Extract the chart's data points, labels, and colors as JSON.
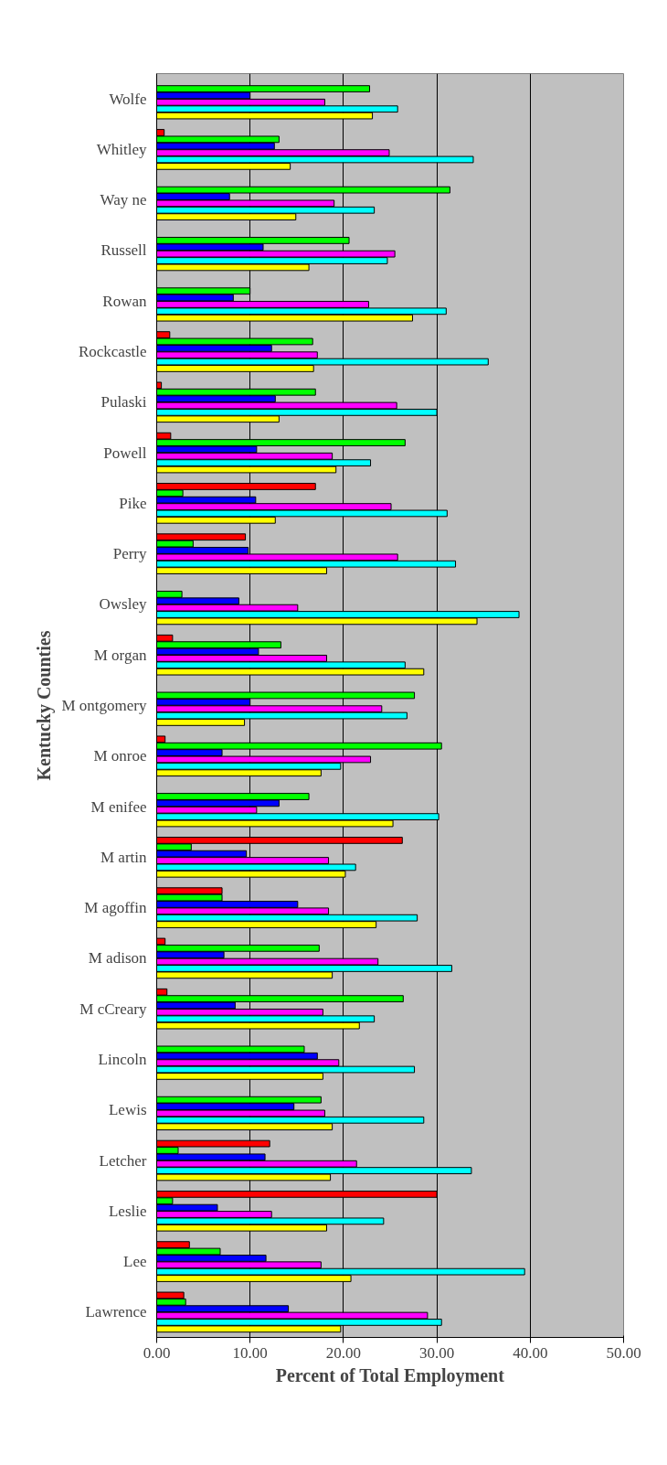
{
  "chart_data": {
    "type": "bar",
    "orientation": "horizontal",
    "xlabel": "Percent of Total Employment",
    "ylabel": "Kentucky Counties",
    "categories": [
      "Wolfe",
      "Whitley",
      "Way ne",
      "Russell",
      "Rowan",
      "Rockcastle",
      "Pulaski",
      "Powell",
      "Pike",
      "Perry",
      "Owsley",
      "M organ",
      "M ontgomery",
      "M onroe",
      "M enifee",
      "M artin",
      "M agoffin",
      "M adison",
      "M cCreary",
      "Lincoln",
      "Lewis",
      "Letcher",
      "Leslie",
      "Lee",
      "Lawrence"
    ],
    "series": [
      {
        "color": "#ff0000",
        "values": [
          null,
          0.8,
          null,
          null,
          null,
          1.4,
          0.5,
          1.5,
          17.0,
          9.5,
          null,
          1.7,
          null,
          0.9,
          null,
          26.3,
          7.0,
          0.9,
          1.1,
          null,
          null,
          12.1,
          30.0,
          3.5,
          2.9
        ]
      },
      {
        "color": "#00ff00",
        "values": [
          22.8,
          13.1,
          31.4,
          20.6,
          10.0,
          16.7,
          17.0,
          26.6,
          2.8,
          3.9,
          2.7,
          13.3,
          27.6,
          30.5,
          16.3,
          3.7,
          7.0,
          17.4,
          26.4,
          15.8,
          17.6,
          2.3,
          1.7,
          6.8,
          3.1
        ]
      },
      {
        "color": "#0000ff",
        "values": [
          10.0,
          12.6,
          7.8,
          11.4,
          8.2,
          12.3,
          12.7,
          10.7,
          10.6,
          9.8,
          8.8,
          10.9,
          10.0,
          7.0,
          13.1,
          9.6,
          15.1,
          7.2,
          8.4,
          17.2,
          14.7,
          11.6,
          6.5,
          11.7,
          14.1
        ]
      },
      {
        "color": "#ff00ff",
        "values": [
          18.0,
          24.9,
          19.0,
          25.5,
          22.7,
          17.2,
          25.7,
          18.8,
          25.1,
          25.8,
          15.1,
          18.2,
          24.1,
          22.9,
          10.7,
          18.4,
          18.4,
          23.7,
          17.8,
          19.5,
          18.0,
          21.4,
          12.3,
          17.6,
          29.0
        ]
      },
      {
        "color": "#00ffff",
        "values": [
          25.8,
          33.9,
          23.3,
          24.7,
          31.0,
          35.5,
          30.0,
          22.9,
          31.1,
          32.0,
          38.8,
          26.6,
          26.8,
          19.7,
          30.2,
          21.3,
          27.9,
          31.6,
          23.3,
          27.6,
          28.6,
          33.7,
          24.3,
          39.4,
          30.5
        ]
      },
      {
        "color": "#ffff00",
        "values": [
          23.1,
          14.3,
          14.9,
          16.3,
          27.4,
          16.8,
          13.1,
          19.2,
          12.7,
          18.2,
          34.3,
          28.6,
          9.4,
          17.6,
          25.3,
          20.2,
          23.5,
          18.8,
          21.7,
          17.8,
          18.8,
          18.6,
          18.2,
          20.8,
          19.7
        ]
      }
    ],
    "xlim": [
      0,
      50
    ],
    "xticks": [
      {
        "value": 0,
        "label": "0.00"
      },
      {
        "value": 10,
        "label": "10.00"
      },
      {
        "value": 20,
        "label": "20.00"
      },
      {
        "value": 30,
        "label": "30.00"
      },
      {
        "value": 40,
        "label": "40.00"
      },
      {
        "value": 50,
        "label": "50.00"
      }
    ],
    "grid": "x"
  }
}
